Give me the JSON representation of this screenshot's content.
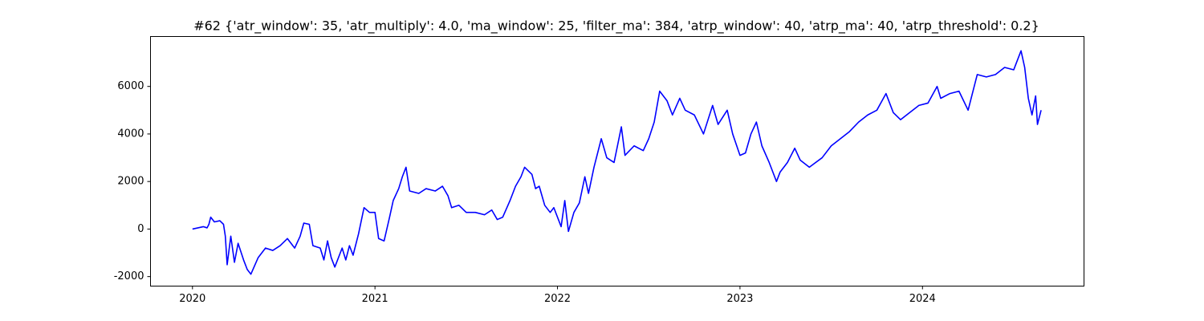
{
  "chart_data": {
    "type": "line",
    "title": "#62 {'atr_window': 35, 'atr_multiply': 4.0, 'ma_window': 25, 'filter_ma': 384, 'atrp_window': 40, 'atrp_ma': 40, 'atrp_threshold': 0.2}",
    "x": [
      2020.0,
      2020.03,
      2020.06,
      2020.08,
      2020.09,
      2020.1,
      2020.12,
      2020.15,
      2020.17,
      2020.18,
      2020.19,
      2020.21,
      2020.23,
      2020.25,
      2020.28,
      2020.3,
      2020.32,
      2020.36,
      2020.4,
      2020.44,
      2020.48,
      2020.52,
      2020.56,
      2020.59,
      2020.61,
      2020.64,
      2020.66,
      2020.7,
      2020.72,
      2020.74,
      2020.76,
      2020.78,
      2020.82,
      2020.84,
      2020.86,
      2020.88,
      2020.91,
      2020.94,
      2020.97,
      2021.0,
      2021.02,
      2021.05,
      2021.08,
      2021.1,
      2021.13,
      2021.15,
      2021.17,
      2021.19,
      2021.24,
      2021.28,
      2021.33,
      2021.37,
      2021.4,
      2021.42,
      2021.46,
      2021.5,
      2021.55,
      2021.6,
      2021.64,
      2021.67,
      2021.7,
      2021.74,
      2021.77,
      2021.8,
      2021.82,
      2021.86,
      2021.88,
      2021.9,
      2021.93,
      2021.96,
      2021.98,
      2022.02,
      2022.04,
      2022.06,
      2022.09,
      2022.12,
      2022.15,
      2022.17,
      2022.2,
      2022.24,
      2022.27,
      2022.31,
      2022.35,
      2022.37,
      2022.42,
      2022.47,
      2022.5,
      2022.53,
      2022.56,
      2022.6,
      2022.63,
      2022.67,
      2022.7,
      2022.75,
      2022.8,
      2022.85,
      2022.88,
      2022.93,
      2022.96,
      2023.0,
      2023.03,
      2023.06,
      2023.09,
      2023.12,
      2023.16,
      2023.2,
      2023.22,
      2023.26,
      2023.3,
      2023.33,
      2023.38,
      2023.45,
      2023.5,
      2023.55,
      2023.6,
      2023.65,
      2023.7,
      2023.75,
      2023.8,
      2023.84,
      2023.88,
      2023.93,
      2023.98,
      2024.03,
      2024.08,
      2024.1,
      2024.15,
      2024.2,
      2024.25,
      2024.3,
      2024.35,
      2024.4,
      2024.45,
      2024.5,
      2024.54,
      2024.56,
      2024.58,
      2024.6,
      2024.62,
      2024.63,
      2024.65
    ],
    "series": [
      {
        "color": "#0000ff",
        "values": [
          0,
          50,
          100,
          50,
          200,
          500,
          300,
          350,
          200,
          -300,
          -1500,
          -300,
          -1400,
          -600,
          -1300,
          -1700,
          -1900,
          -1200,
          -800,
          -900,
          -700,
          -400,
          -800,
          -300,
          250,
          200,
          -700,
          -800,
          -1300,
          -500,
          -1200,
          -1600,
          -800,
          -1300,
          -700,
          -1100,
          -200,
          900,
          700,
          700,
          -400,
          -500,
          500,
          1200,
          1700,
          2200,
          2600,
          1600,
          1500,
          1700,
          1600,
          1800,
          1400,
          900,
          1000,
          700,
          700,
          600,
          800,
          400,
          500,
          1200,
          1800,
          2200,
          2600,
          2300,
          1700,
          1800,
          1000,
          700,
          900,
          100,
          1200,
          -100,
          700,
          1100,
          2200,
          1500,
          2600,
          3800,
          3000,
          2800,
          4300,
          3100,
          3500,
          3300,
          3800,
          4500,
          5800,
          5400,
          4800,
          5500,
          5000,
          4800,
          4000,
          5200,
          4400,
          5000,
          4000,
          3100,
          3200,
          4000,
          4500,
          3500,
          2800,
          2000,
          2400,
          2800,
          3400,
          2900,
          2600,
          3000,
          3500,
          3800,
          4100,
          4500,
          4800,
          5000,
          5700,
          4900,
          4600,
          4900,
          5200,
          5300,
          6000,
          5500,
          5700,
          5800,
          5000,
          6500,
          6400,
          6500,
          6800,
          6700,
          7500,
          6800,
          5500,
          4800,
          5600,
          4400,
          5000
        ]
      }
    ],
    "xlim": [
      2019.77,
      2024.885
    ],
    "xticks": [
      2020,
      2021,
      2022,
      2023,
      2024
    ],
    "ylim": [
      -2400,
      8100
    ],
    "yticks": [
      -2000,
      0,
      2000,
      4000,
      6000
    ]
  }
}
